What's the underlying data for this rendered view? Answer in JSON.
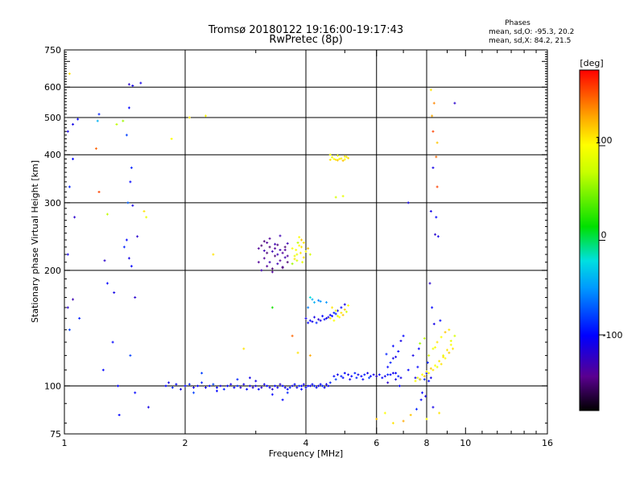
{
  "chart_data": {
    "type": "scatter",
    "title_line1": "Tromsø 20180122 19:16:00-19:17:43",
    "title_line2": "RwPretec (8p)",
    "phases": {
      "header": "Phases",
      "line_o": "mean, sd,O: -95.3, 20.2",
      "line_x": "mean, sd,X: 84.2, 21.5"
    },
    "xlabel": "Frequency [MHz]",
    "ylabel": "Stationary phase Virtual Height [km]",
    "x_scale": "log",
    "y_scale": "log",
    "xlim": [
      1,
      16
    ],
    "ylim": [
      75,
      750
    ],
    "x_ticks": [
      {
        "value": 1,
        "label": "1"
      },
      {
        "value": 2,
        "label": "2"
      },
      {
        "value": 4,
        "label": "4"
      },
      {
        "value": 6,
        "label": "6"
      },
      {
        "value": 8,
        "label": "8"
      },
      {
        "value": 10,
        "label": "10"
      },
      {
        "value": 16,
        "label": "16"
      }
    ],
    "y_ticks": [
      {
        "value": 75,
        "label": "75"
      },
      {
        "value": 100,
        "label": "100"
      },
      {
        "value": 200,
        "label": "200"
      },
      {
        "value": 300,
        "label": "300"
      },
      {
        "value": 400,
        "label": "400"
      },
      {
        "value": 500,
        "label": "500"
      },
      {
        "value": 600,
        "label": "600"
      },
      {
        "value": 750,
        "label": "750"
      }
    ],
    "x_grid": [
      2,
      4,
      6,
      8
    ],
    "y_grid": [
      100,
      200,
      300,
      400,
      500,
      600
    ],
    "grid": true,
    "colorbar": {
      "label": "[deg]",
      "range": [
        -180,
        180
      ],
      "ticks": [
        {
          "value": -100,
          "label": "-100"
        },
        {
          "value": 0,
          "label": "0"
        },
        {
          "value": 100,
          "label": "100"
        }
      ]
    },
    "series": [
      {
        "x": [
          1.02,
          1.05,
          1.03,
          1.06,
          1.02,
          1.08,
          1.05,
          1.03,
          1.22,
          1.21,
          1.28,
          1.26,
          1.33,
          1.32,
          1.45,
          1.45,
          1.43,
          1.47,
          1.46,
          1.44,
          1.48,
          1.52,
          1.43,
          1.41,
          1.45,
          1.47,
          1.5,
          1.55,
          1.48,
          1.58,
          1.37,
          1.46,
          1.5,
          1.62,
          1.02,
          1.09,
          1.25,
          1.36,
          1.05
        ],
        "y": [
          460,
          390,
          330,
          275,
          220,
          495,
          168,
          140,
          510,
          490,
          185,
          212,
          175,
          130,
          610,
          530,
          450,
          370,
          340,
          300,
          295,
          245,
          240,
          230,
          215,
          205,
          170,
          615,
          605,
          285,
          84,
          120,
          96,
          88,
          160,
          150,
          110,
          100,
          480
        ],
        "phase": [
          -110,
          -100,
          -90,
          -120,
          -110,
          -100,
          -130,
          -80,
          -90,
          -40,
          -100,
          -120,
          -110,
          -100,
          -120,
          -100,
          -80,
          -90,
          -100,
          -70,
          -110,
          -120,
          -100,
          -90,
          -110,
          -100,
          -120,
          -110,
          -110,
          110,
          -100,
          -80,
          -100,
          -110,
          -120,
          -90,
          -100,
          -100,
          -110
        ]
      },
      {
        "x": [
          1.03,
          1.2,
          1.22,
          1.35,
          1.4,
          2.05,
          2.25,
          3.3,
          3.7,
          3.82,
          4.1,
          1.85,
          2.35,
          1.6,
          1.28,
          2.8
        ],
        "y": [
          650,
          415,
          320,
          480,
          490,
          500,
          505,
          160,
          135,
          122,
          120,
          440,
          220,
          275,
          280,
          125
        ],
        "phase": [
          110,
          150,
          160,
          70,
          60,
          110,
          100,
          20,
          150,
          110,
          130,
          100,
          110,
          90,
          70,
          110
        ]
      },
      {
        "x": [
          1.79,
          1.82,
          1.86,
          1.9,
          1.95,
          2.0,
          2.05,
          2.1,
          2.15,
          2.2,
          2.25,
          2.3,
          2.35,
          2.4,
          2.45,
          2.5,
          2.55,
          2.6,
          2.65,
          2.7,
          2.75,
          2.8,
          2.85,
          2.9,
          2.95,
          3.0,
          3.05,
          3.1,
          3.15,
          3.2,
          3.25,
          3.3,
          3.35,
          3.4,
          3.45,
          3.5,
          3.55,
          3.6,
          3.65,
          3.7,
          3.75,
          3.8,
          3.85,
          3.9,
          3.95,
          4.0,
          4.05,
          4.1,
          4.15,
          4.2,
          4.25,
          4.3,
          4.35,
          4.4,
          4.45,
          4.5,
          4.55,
          4.6,
          2.1,
          2.4,
          2.7,
          3.0,
          3.3,
          3.6,
          3.9,
          2.2,
          2.9,
          3.5
        ],
        "y": [
          100,
          102,
          99,
          101,
          98,
          100,
          101,
          99,
          100,
          102,
          99,
          100,
          101,
          99,
          100,
          98,
          100,
          101,
          99,
          100,
          99,
          101,
          98,
          100,
          99,
          100,
          98,
          99,
          101,
          100,
          99,
          98,
          100,
          99,
          101,
          100,
          99,
          98,
          99,
          100,
          101,
          99,
          100,
          100,
          101,
          99,
          100,
          100,
          101,
          100,
          99,
          100,
          101,
          100,
          99,
          101,
          100,
          102,
          96,
          97,
          104,
          103,
          95,
          96,
          98,
          108,
          105,
          92
        ],
        "phase": [
          -100,
          -110,
          -90,
          -100,
          -110,
          -100,
          -90,
          -110,
          -100,
          -90,
          -110,
          -100,
          -80,
          -100,
          -110,
          -90,
          -100,
          -110,
          -100,
          -90,
          -120,
          -110,
          -100,
          -110,
          -120,
          -110,
          -100,
          -120,
          -110,
          -100,
          -110,
          -120,
          -100,
          -110,
          -120,
          -100,
          -110,
          -100,
          -90,
          -110,
          -100,
          -110,
          -90,
          -100,
          -110,
          -100,
          -100,
          -110,
          -100,
          -90,
          -100,
          -110,
          -100,
          -90,
          -100,
          -110,
          -100,
          -90,
          -80,
          -100,
          -90,
          -110,
          -100,
          -90,
          -100,
          -80,
          -110,
          -100
        ]
      },
      {
        "x": [
          4.7,
          4.8,
          4.9,
          5.0,
          5.1,
          5.2,
          5.3,
          5.4,
          5.5,
          5.6,
          5.7,
          5.8,
          5.9,
          6.0,
          6.1,
          4.75,
          4.95,
          5.15,
          5.35,
          5.55,
          5.75
        ],
        "y": [
          106,
          107,
          106,
          108,
          107,
          106,
          108,
          107,
          106,
          107,
          108,
          106,
          107,
          106,
          107,
          104,
          105,
          104,
          105,
          104,
          105
        ],
        "phase": [
          -100,
          -110,
          -90,
          -100,
          -110,
          -100,
          -90,
          -110,
          -100,
          -90,
          -110,
          -100,
          -110,
          -120,
          -100,
          -80,
          -100,
          -110,
          -90,
          -100,
          -80
        ]
      },
      {
        "x": [
          3.05,
          3.1,
          3.15,
          3.2,
          3.25,
          3.3,
          3.35,
          3.4,
          3.45,
          3.5,
          3.55,
          3.6,
          3.15,
          3.25,
          3.35,
          3.45,
          3.55,
          3.2,
          3.3,
          3.4,
          3.5,
          3.6,
          3.1,
          3.3,
          3.5,
          3.25,
          3.45,
          3.05,
          3.2,
          3.4,
          3.6,
          3.15,
          3.35,
          3.55,
          3.7,
          3.75,
          3.8,
          3.85,
          3.9,
          3.95,
          4.0,
          3.7,
          3.8,
          3.9,
          4.05,
          3.75,
          3.85,
          3.95,
          4.1,
          3.78,
          3.88,
          3.82,
          3.92
        ],
        "y": [
          228,
          232,
          225,
          236,
          230,
          224,
          228,
          233,
          226,
          222,
          230,
          235,
          215,
          210,
          218,
          212,
          216,
          205,
          202,
          208,
          204,
          210,
          200,
          198,
          203,
          242,
          246,
          210,
          222,
          220,
          218,
          238,
          234,
          226,
          228,
          214,
          220,
          232,
          240,
          236,
          224,
          208,
          212,
          230,
          228,
          218,
          244,
          216,
          220,
          226,
          222,
          236,
          210
        ],
        "phase": [
          -140,
          -150,
          -130,
          -140,
          -150,
          -130,
          -140,
          -150,
          -130,
          -140,
          -150,
          -130,
          -140,
          -130,
          -150,
          -140,
          -130,
          -140,
          -150,
          -130,
          -140,
          -150,
          -130,
          -140,
          -150,
          -140,
          -130,
          -140,
          -150,
          -130,
          -140,
          -150,
          -130,
          -140,
          100,
          110,
          90,
          100,
          120,
          110,
          100,
          60,
          80,
          110,
          120,
          90,
          100,
          110,
          80,
          100,
          110,
          70,
          90
        ]
      },
      {
        "x": [
          4.0,
          4.1,
          4.2,
          4.3,
          4.4,
          4.5,
          4.6,
          4.7,
          4.8,
          4.9,
          5.0,
          4.05,
          4.15,
          4.25,
          4.35,
          4.45,
          4.55,
          4.65,
          4.75,
          4.2,
          4.35,
          4.05,
          4.15,
          4.1,
          4.3,
          4.5,
          4.6,
          4.7,
          4.8,
          4.9,
          5.0,
          5.1,
          4.65,
          4.75,
          4.85,
          4.95,
          5.05
        ],
        "y": [
          150,
          148,
          151,
          149,
          152,
          150,
          153,
          155,
          157,
          160,
          163,
          146,
          147,
          146,
          148,
          149,
          151,
          152,
          154,
          165,
          166,
          160,
          168,
          170,
          167,
          165,
          150,
          148,
          152,
          155,
          158,
          162,
          160,
          157,
          151,
          153,
          156
        ],
        "phase": [
          -110,
          -100,
          -110,
          -120,
          -100,
          -110,
          -100,
          -90,
          -110,
          -100,
          -110,
          -100,
          -110,
          -90,
          -110,
          -100,
          -110,
          -100,
          -90,
          -40,
          -50,
          -60,
          -40,
          -20,
          -60,
          -50,
          110,
          100,
          90,
          110,
          120,
          100,
          110,
          90,
          100,
          120,
          80
        ]
      },
      {
        "x": [
          4.6,
          4.7,
          4.8,
          4.9,
          5.0,
          5.1,
          4.65,
          4.75,
          4.85,
          4.95,
          5.05,
          4.6,
          4.8,
          5.0,
          4.75,
          4.95
        ],
        "y": [
          388,
          390,
          387,
          391,
          389,
          392,
          394,
          388,
          390,
          386,
          395,
          400,
          398,
          396,
          310,
          312
        ],
        "phase": [
          110,
          100,
          120,
          110,
          100,
          110,
          90,
          110,
          100,
          120,
          110,
          100,
          90,
          110,
          80,
          90
        ]
      },
      {
        "x": [
          6.2,
          6.3,
          6.4,
          6.5,
          6.6,
          6.7,
          6.8,
          6.9,
          6.4,
          6.6,
          6.8,
          6.5,
          6.7,
          6.6,
          6.9,
          7.0,
          6.4,
          6.7,
          6.85,
          6.35,
          7.2,
          7.5,
          7.7,
          8.0,
          8.2,
          7.6,
          7.9,
          8.1,
          7.4,
          7.8,
          7.55,
          7.95,
          7.75,
          7.65,
          8.05,
          8.3
        ],
        "y": [
          105,
          106,
          107,
          107,
          108,
          108,
          106,
          105,
          112,
          118,
          123,
          115,
          119,
          127,
          131,
          135,
          102,
          104,
          100,
          121,
          110,
          105,
          104,
          108,
          105,
          112,
          104,
          103,
          120,
          96,
          87,
          94,
          92,
          125,
          115,
          88
        ],
        "phase": [
          -100,
          -110,
          -90,
          -100,
          -110,
          -100,
          -90,
          -110,
          -100,
          -110,
          -100,
          -90,
          -110,
          -100,
          -110,
          -100,
          -120,
          -110,
          -100,
          -90,
          -100,
          -110,
          -90,
          -100,
          -110,
          -100,
          -90,
          -100,
          -110,
          -100,
          -90,
          -110,
          -100,
          -100,
          -90,
          -110
        ]
      },
      {
        "x": [
          7.5,
          7.7,
          7.9,
          8.1,
          8.3,
          8.5,
          8.7,
          8.9,
          9.1,
          9.3,
          7.6,
          7.8,
          8.0,
          8.2,
          8.4,
          8.6,
          8.8,
          9.0,
          9.2,
          8.1,
          8.3,
          8.5,
          8.7,
          8.9,
          9.1,
          7.7,
          7.9,
          8.4,
          8.8,
          9.2,
          9.4,
          8.0,
          8.6,
          6.0,
          6.3,
          6.6,
          7.0,
          7.3,
          8.2,
          8.35,
          8.5,
          8.25,
          8.45,
          8.3
        ],
        "y": [
          103,
          104,
          106,
          108,
          110,
          112,
          114,
          118,
          122,
          125,
          105,
          107,
          109,
          111,
          113,
          116,
          120,
          124,
          128,
          120,
          125,
          130,
          134,
          138,
          140,
          129,
          133,
          126,
          119,
          131,
          135,
          82,
          85,
          82,
          85,
          80,
          81,
          84,
          590,
          545,
          430,
          505,
          395,
          460
        ],
        "phase": [
          100,
          110,
          120,
          100,
          110,
          90,
          110,
          100,
          120,
          110,
          90,
          100,
          110,
          120,
          100,
          110,
          90,
          110,
          100,
          80,
          90,
          110,
          100,
          120,
          110,
          60,
          70,
          100,
          110,
          90,
          80,
          100,
          110,
          120,
          100,
          110,
          130,
          120,
          110,
          140,
          120,
          130,
          150,
          160
        ]
      },
      {
        "x": [
          8.15,
          8.25,
          8.35,
          8.2,
          8.45,
          8.4,
          7.2,
          9.4,
          8.3,
          8.55,
          8.5,
          8.65
        ],
        "y": [
          185,
          160,
          145,
          285,
          275,
          248,
          300,
          545,
          370,
          245,
          330,
          148
        ],
        "phase": [
          -120,
          -100,
          -110,
          -110,
          -100,
          -120,
          -110,
          -120,
          -110,
          -110,
          160,
          -100
        ]
      }
    ]
  }
}
